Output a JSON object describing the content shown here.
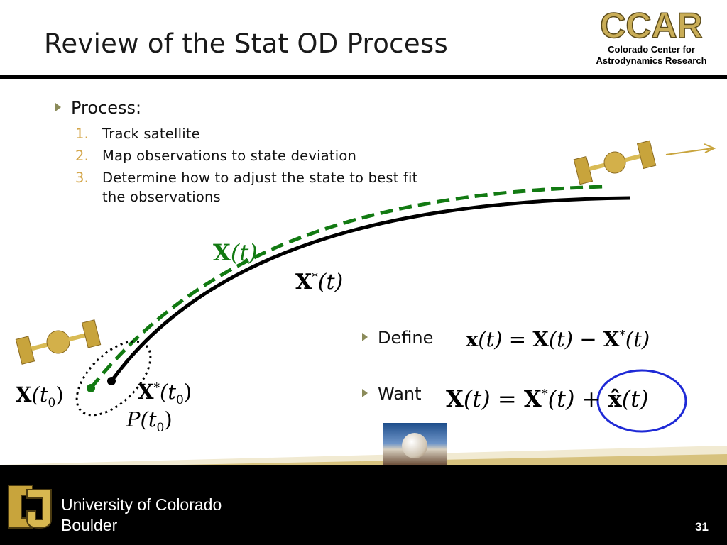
{
  "slide": {
    "title": "Review of the Stat OD Process",
    "page_number": "31"
  },
  "header_logo": {
    "acronym": "CCAR",
    "line1": "Colorado Center for",
    "line2": "Astrodynamics Research"
  },
  "process": {
    "heading": "Process:",
    "steps": [
      {
        "num": "1.",
        "text": "Track satellite"
      },
      {
        "num": "2.",
        "text": "Map observations to state deviation"
      },
      {
        "num": "3.",
        "text": "Determine how to adjust the state to best fit the observations"
      }
    ]
  },
  "diagram": {
    "true_traj_label": {
      "sym": "X",
      "arg": "(t)"
    },
    "ref_traj_label": {
      "sym": "X",
      "sup": "*",
      "arg": "(t)"
    },
    "initial_true_label": {
      "sym": "X",
      "arg": "(t",
      "sub": "0",
      "close": ")"
    },
    "initial_ref_label": {
      "sym": "X",
      "sup": "*",
      "arg": "(t",
      "sub": "0",
      "close": ")"
    },
    "covariance_label": {
      "sym": "P",
      "arg": "(t",
      "sub": "0",
      "close": ")"
    },
    "colors": {
      "true_traj": "#127a12",
      "ref_traj": "#000000",
      "satellite": "#c8a43c",
      "highlight": "#1f2ad6"
    }
  },
  "define": {
    "label": "Define",
    "eq": {
      "lhs": "x",
      "lhs_arg": "(t) = ",
      "a": "X",
      "a_arg": "(t) − ",
      "b": "X",
      "b_sup": "*",
      "b_arg": "(t)"
    }
  },
  "want": {
    "label": "Want",
    "eq": {
      "lhs": "X",
      "lhs_arg": "(t) = ",
      "a": "X",
      "a_sup": "*",
      "a_arg": "(t) + ",
      "b": "x̂",
      "b_arg": "(t)"
    }
  },
  "footer": {
    "university_line1": "University of Colorado",
    "university_line2": "Boulder"
  }
}
